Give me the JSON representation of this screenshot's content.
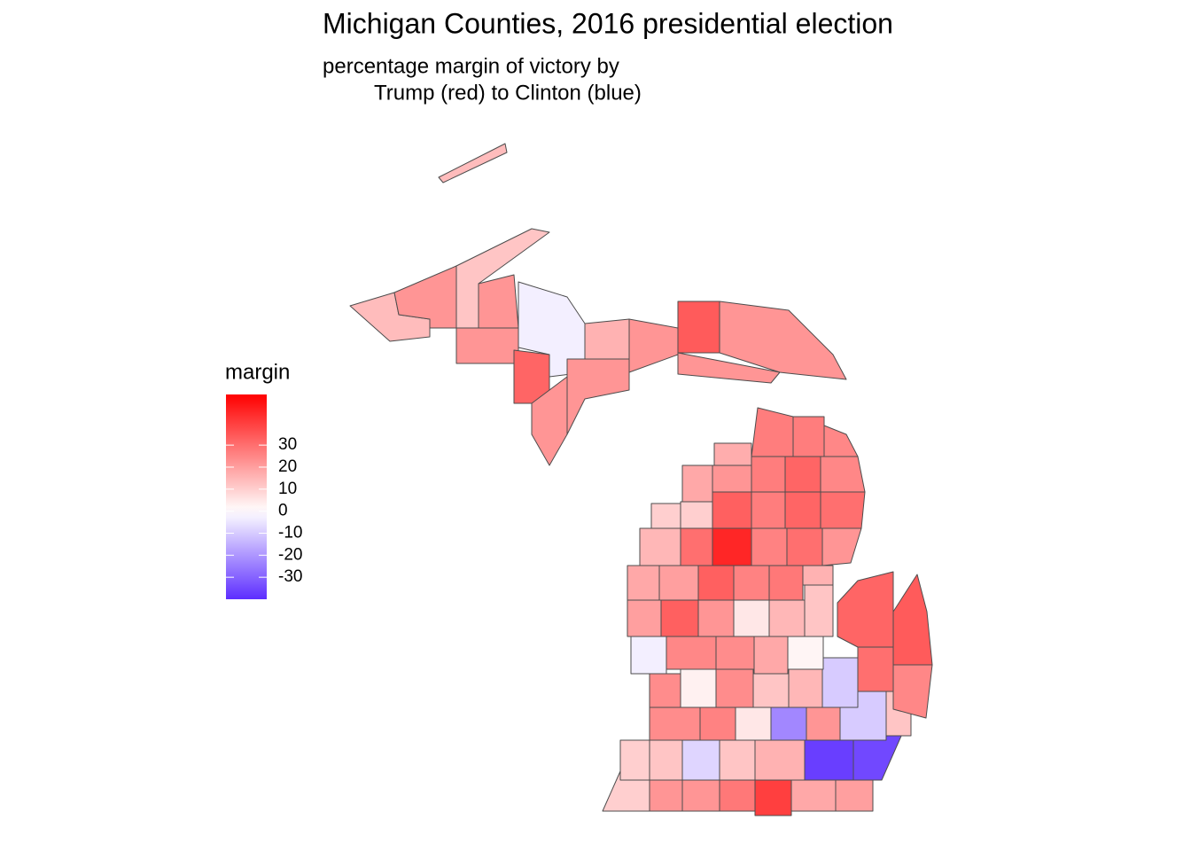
{
  "chart_data": {
    "type": "choropleth",
    "title": "Michigan Counties, 2016 presidential election",
    "subtitle": [
      "percentage margin of victory by",
      "Trump (red) to Clinton (blue)"
    ],
    "legend_title": "margin",
    "limits": [
      -40,
      53
    ],
    "ticks": [
      30,
      20,
      10,
      0,
      -10,
      -20,
      -30
    ],
    "colors": {
      "low": "#5d2eff",
      "mid": "#ffffff",
      "high": "#ff0000"
    },
    "values": [
      14,
      22,
      12,
      22,
      -3,
      22,
      32,
      22,
      22,
      16,
      22,
      34,
      22,
      22,
      14,
      10,
      22,
      22,
      28,
      40,
      18,
      20,
      10,
      12,
      -8,
      12,
      16,
      -37,
      -35,
      24,
      26,
      5,
      -23,
      22,
      -10,
      12,
      24,
      3,
      24,
      12,
      15,
      -10,
      30,
      25,
      -3,
      25,
      24,
      18,
      2,
      34,
      20,
      33,
      22,
      5,
      15,
      12,
      32,
      18,
      20,
      33,
      26,
      28,
      16,
      15,
      30,
      45,
      26,
      30,
      22,
      10,
      10,
      33,
      27,
      32,
      30,
      18,
      22,
      27,
      32,
      25,
      17,
      27,
      27,
      25
    ]
  }
}
